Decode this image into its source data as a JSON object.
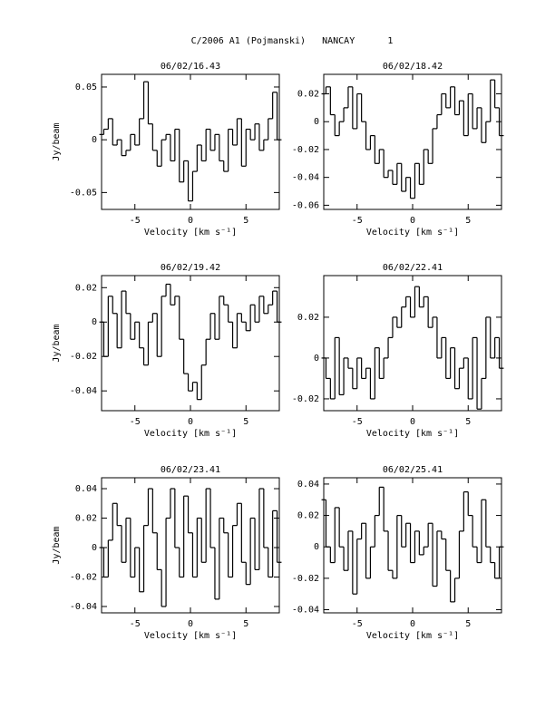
{
  "title": "C/2006 A1 (Pojmanski)   NANCAY      1",
  "chart_data": [
    {
      "type": "line",
      "step": true,
      "title": "06/02/16.43",
      "xlabel": "Velocity [km s⁻¹]",
      "ylabel": "Jy/beam",
      "color": "#000000",
      "x": [
        -8,
        -7.6,
        -7.2,
        -6.8,
        -6.4,
        -6,
        -5.6,
        -5.2,
        -4.8,
        -4.4,
        -4,
        -3.6,
        -3.2,
        -2.8,
        -2.4,
        -2,
        -1.6,
        -1.2,
        -0.8,
        -0.4,
        0,
        0.4,
        0.8,
        1.2,
        1.6,
        2,
        2.4,
        2.8,
        3.2,
        3.6,
        4,
        4.4,
        4.8,
        5.2,
        5.6,
        6,
        6.4,
        6.8,
        7.2,
        7.6,
        8
      ],
      "values": [
        0.005,
        0.01,
        0.02,
        -0.005,
        0.0,
        -0.015,
        -0.01,
        0.005,
        -0.005,
        0.02,
        0.055,
        0.015,
        -0.01,
        -0.025,
        0.0,
        0.005,
        -0.02,
        0.01,
        -0.04,
        -0.02,
        -0.058,
        -0.03,
        -0.005,
        -0.02,
        0.01,
        -0.01,
        0.005,
        -0.02,
        -0.03,
        0.01,
        -0.005,
        0.02,
        -0.025,
        0.01,
        0.0,
        0.015,
        -0.01,
        0.0,
        0.02,
        0.045,
        0.0
      ],
      "xlim": [
        -8,
        8
      ],
      "xticks": [
        -5,
        0,
        5
      ],
      "ylim": [
        -0.066,
        0.062
      ],
      "yticks": [
        -0.05,
        0,
        0.05
      ]
    },
    {
      "type": "line",
      "step": true,
      "title": "06/02/18.42",
      "xlabel": "Velocity [km s⁻¹]",
      "color": "#000000",
      "x": [
        -8,
        -7.6,
        -7.2,
        -6.8,
        -6.4,
        -6,
        -5.6,
        -5.2,
        -4.8,
        -4.4,
        -4,
        -3.6,
        -3.2,
        -2.8,
        -2.4,
        -2,
        -1.6,
        -1.2,
        -0.8,
        -0.4,
        0,
        0.4,
        0.8,
        1.2,
        1.6,
        2,
        2.4,
        2.8,
        3.2,
        3.6,
        4,
        4.4,
        4.8,
        5.2,
        5.6,
        6,
        6.4,
        6.8,
        7.2,
        7.6,
        8
      ],
      "values": [
        0.02,
        0.025,
        0.005,
        -0.01,
        0.0,
        0.01,
        0.025,
        -0.005,
        0.02,
        0.0,
        -0.02,
        -0.01,
        -0.03,
        -0.02,
        -0.04,
        -0.035,
        -0.045,
        -0.03,
        -0.05,
        -0.04,
        -0.055,
        -0.03,
        -0.045,
        -0.02,
        -0.03,
        -0.005,
        0.005,
        0.02,
        0.01,
        0.025,
        0.005,
        0.015,
        -0.01,
        0.02,
        -0.005,
        0.01,
        -0.015,
        0.0,
        0.03,
        0.01,
        -0.01
      ],
      "xlim": [
        -8,
        8
      ],
      "xticks": [
        -5,
        0,
        5
      ],
      "ylim": [
        -0.063,
        0.034
      ],
      "yticks": [
        -0.06,
        -0.04,
        -0.02,
        0,
        0.02
      ]
    },
    {
      "type": "line",
      "step": true,
      "title": "06/02/19.42",
      "xlabel": "Velocity [km s⁻¹]",
      "ylabel": "Jy/beam",
      "color": "#000000",
      "x": [
        -8,
        -7.6,
        -7.2,
        -6.8,
        -6.4,
        -6,
        -5.6,
        -5.2,
        -4.8,
        -4.4,
        -4,
        -3.6,
        -3.2,
        -2.8,
        -2.4,
        -2,
        -1.6,
        -1.2,
        -0.8,
        -0.4,
        0,
        0.4,
        0.8,
        1.2,
        1.6,
        2,
        2.4,
        2.8,
        3.2,
        3.6,
        4,
        4.4,
        4.8,
        5.2,
        5.6,
        6,
        6.4,
        6.8,
        7.2,
        7.6,
        8
      ],
      "values": [
        0.0,
        -0.02,
        0.015,
        0.005,
        -0.015,
        0.018,
        0.005,
        -0.01,
        0.0,
        -0.015,
        -0.025,
        0.0,
        0.005,
        -0.02,
        0.015,
        0.022,
        0.01,
        0.015,
        -0.01,
        -0.03,
        -0.04,
        -0.035,
        -0.045,
        -0.025,
        -0.01,
        0.005,
        -0.01,
        0.015,
        0.01,
        0.0,
        -0.015,
        0.005,
        0.0,
        -0.005,
        0.01,
        0.0,
        0.015,
        0.005,
        0.01,
        0.018,
        0.0
      ],
      "xlim": [
        -8,
        8
      ],
      "xticks": [
        -5,
        0,
        5
      ],
      "ylim": [
        -0.0515,
        0.027
      ],
      "yticks": [
        -0.04,
        -0.02,
        0,
        0.02
      ]
    },
    {
      "type": "line",
      "step": true,
      "title": "06/02/22.41",
      "xlabel": "Velocity [km s⁻¹]",
      "color": "#000000",
      "x": [
        -8,
        -7.6,
        -7.2,
        -6.8,
        -6.4,
        -6,
        -5.6,
        -5.2,
        -4.8,
        -4.4,
        -4,
        -3.6,
        -3.2,
        -2.8,
        -2.4,
        -2,
        -1.6,
        -1.2,
        -0.8,
        -0.4,
        0,
        0.4,
        0.8,
        1.2,
        1.6,
        2,
        2.4,
        2.8,
        3.2,
        3.6,
        4,
        4.4,
        4.8,
        5.2,
        5.6,
        6,
        6.4,
        6.8,
        7.2,
        7.6,
        8
      ],
      "values": [
        0.0,
        -0.01,
        -0.02,
        0.01,
        -0.018,
        0.0,
        -0.005,
        -0.015,
        0.0,
        -0.01,
        -0.005,
        -0.02,
        0.005,
        -0.01,
        0.0,
        0.01,
        0.02,
        0.015,
        0.025,
        0.03,
        0.02,
        0.035,
        0.025,
        0.03,
        0.015,
        0.02,
        0.0,
        0.01,
        -0.01,
        0.005,
        -0.015,
        -0.005,
        0.0,
        -0.02,
        0.01,
        -0.025,
        -0.01,
        0.02,
        0.0,
        0.01,
        -0.005
      ],
      "xlim": [
        -8,
        8
      ],
      "xticks": [
        -5,
        0,
        5
      ],
      "ylim": [
        -0.0258,
        0.0404
      ],
      "yticks": [
        -0.02,
        0,
        0.02
      ]
    },
    {
      "type": "line",
      "step": true,
      "title": "06/02/23.41",
      "xlabel": "Velocity [km s⁻¹]",
      "ylabel": "Jy/beam",
      "color": "#000000",
      "x": [
        -8,
        -7.6,
        -7.2,
        -6.8,
        -6.4,
        -6,
        -5.6,
        -5.2,
        -4.8,
        -4.4,
        -4,
        -3.6,
        -3.2,
        -2.8,
        -2.4,
        -2,
        -1.6,
        -1.2,
        -0.8,
        -0.4,
        0,
        0.4,
        0.8,
        1.2,
        1.6,
        2,
        2.4,
        2.8,
        3.2,
        3.6,
        4,
        4.4,
        4.8,
        5.2,
        5.6,
        6,
        6.4,
        6.8,
        7.2,
        7.6,
        8
      ],
      "values": [
        0.0,
        -0.02,
        0.005,
        0.03,
        0.015,
        -0.01,
        0.02,
        -0.02,
        0.0,
        -0.03,
        0.015,
        0.04,
        0.01,
        -0.015,
        -0.04,
        0.02,
        0.04,
        0.0,
        -0.02,
        0.035,
        0.01,
        -0.02,
        0.02,
        -0.01,
        0.04,
        0.0,
        -0.035,
        0.02,
        0.01,
        -0.02,
        0.015,
        0.03,
        -0.01,
        -0.025,
        0.02,
        -0.015,
        0.04,
        0.0,
        -0.02,
        0.025,
        -0.01
      ],
      "xlim": [
        -8,
        8
      ],
      "xticks": [
        -5,
        0,
        5
      ],
      "ylim": [
        -0.0443,
        0.0474
      ],
      "yticks": [
        -0.04,
        -0.02,
        0,
        0.02,
        0.04
      ]
    },
    {
      "type": "line",
      "step": true,
      "title": "06/02/25.41",
      "xlabel": "Velocity [km s⁻¹]",
      "color": "#000000",
      "x": [
        -8,
        -7.6,
        -7.2,
        -6.8,
        -6.4,
        -6,
        -5.6,
        -5.2,
        -4.8,
        -4.4,
        -4,
        -3.6,
        -3.2,
        -2.8,
        -2.4,
        -2,
        -1.6,
        -1.2,
        -0.8,
        -0.4,
        0,
        0.4,
        0.8,
        1.2,
        1.6,
        2,
        2.4,
        2.8,
        3.2,
        3.6,
        4,
        4.4,
        4.8,
        5.2,
        5.6,
        6,
        6.4,
        6.8,
        7.2,
        7.6,
        8
      ],
      "values": [
        0.03,
        0.0,
        -0.01,
        0.025,
        0.0,
        -0.015,
        0.01,
        -0.03,
        0.005,
        0.015,
        -0.02,
        0.0,
        0.02,
        0.038,
        0.01,
        -0.015,
        -0.02,
        0.02,
        0.0,
        0.015,
        -0.01,
        0.01,
        -0.005,
        0.0,
        0.015,
        -0.025,
        0.01,
        0.005,
        -0.015,
        -0.035,
        -0.02,
        0.01,
        0.035,
        0.02,
        0.0,
        -0.01,
        0.03,
        0.0,
        -0.01,
        -0.02,
        0.0
      ],
      "xlim": [
        -8,
        8
      ],
      "xticks": [
        -5,
        0,
        5
      ],
      "ylim": [
        -0.042,
        0.044
      ],
      "yticks": [
        -0.04,
        -0.02,
        0,
        0.02,
        0.04
      ]
    }
  ]
}
